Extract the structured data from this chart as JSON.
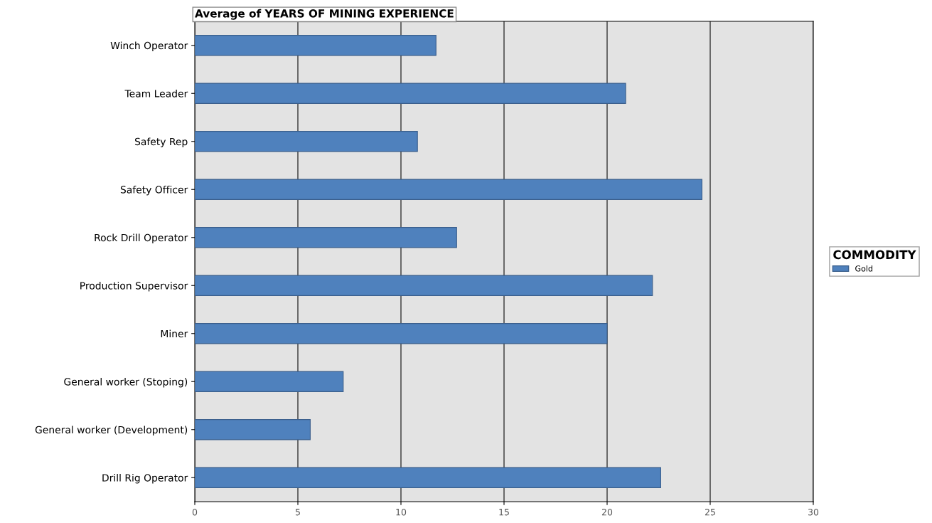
{
  "chart_data": {
    "type": "bar",
    "orientation": "horizontal",
    "title": "Average of YEARS OF MINING EXPERIENCE",
    "categories": [
      "Winch Operator",
      "Team Leader",
      "Safety Rep",
      "Safety Officer",
      "Rock Drill Operator",
      "Production Supervisor",
      "Miner",
      "General worker (Stoping)",
      "General worker (Development)",
      "Drill Rig Operator"
    ],
    "series": [
      {
        "name": "Gold",
        "color": "#4f81bd",
        "values": [
          11.7,
          20.9,
          10.8,
          24.6,
          12.7,
          22.2,
          20.0,
          7.2,
          5.6,
          22.6
        ]
      }
    ],
    "xlim": [
      0,
      30
    ],
    "xticks": [
      0,
      5,
      10,
      15,
      20,
      25,
      30
    ],
    "grid": "x",
    "legend": "right",
    "legend_title": "COMMODITY"
  }
}
